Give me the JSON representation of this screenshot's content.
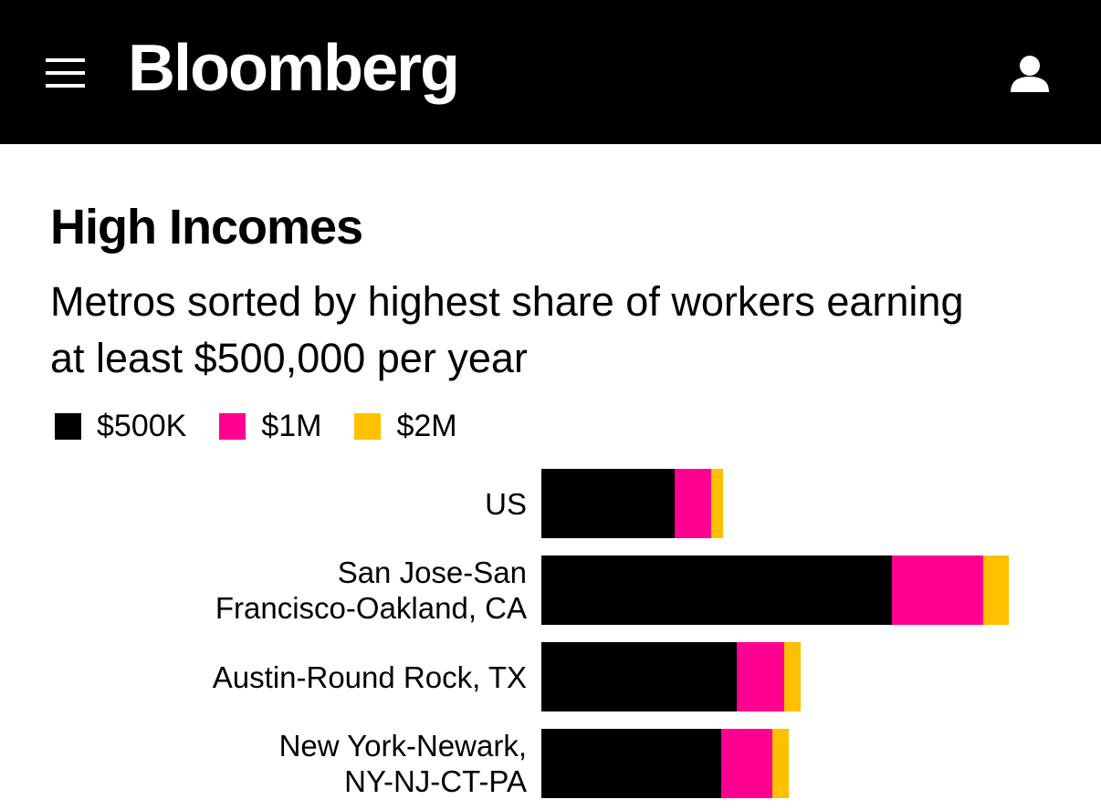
{
  "header": {
    "brand": "Bloomberg"
  },
  "chart_data": {
    "type": "stacked-bar-horizontal",
    "title": "High Incomes",
    "subtitle": "Metros sorted by highest share of workers earning at least $500,000 per year",
    "categories": [
      "US",
      "San Jose-San\nFrancisco-Oakland, CA",
      "Austin-Round Rock, TX",
      "New York-Newark,\nNY-NJ-CT-PA"
    ],
    "series": [
      {
        "name": "$500K",
        "color": "#000000",
        "values": [
          1.46,
          3.84,
          2.14,
          1.97
        ]
      },
      {
        "name": "$1M",
        "color": "#ff0090",
        "values": [
          0.4,
          1.0,
          0.52,
          0.56
        ]
      },
      {
        "name": "$2M",
        "color": "#ffc000",
        "values": [
          0.13,
          0.28,
          0.18,
          0.18
        ]
      }
    ],
    "legend": "top-left"
  }
}
